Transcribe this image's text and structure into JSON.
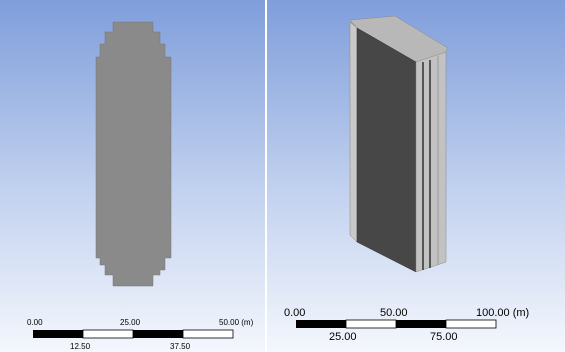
{
  "left_view": {
    "scale_top": [
      "0.00",
      "25.00",
      "50.00 (m)"
    ],
    "scale_bottom": [
      "12.50",
      "37.50"
    ]
  },
  "right_view": {
    "scale_top": [
      "0.00",
      "50.00",
      "100.00 (m)"
    ],
    "scale_bottom": [
      "25.00",
      "75.00"
    ]
  }
}
